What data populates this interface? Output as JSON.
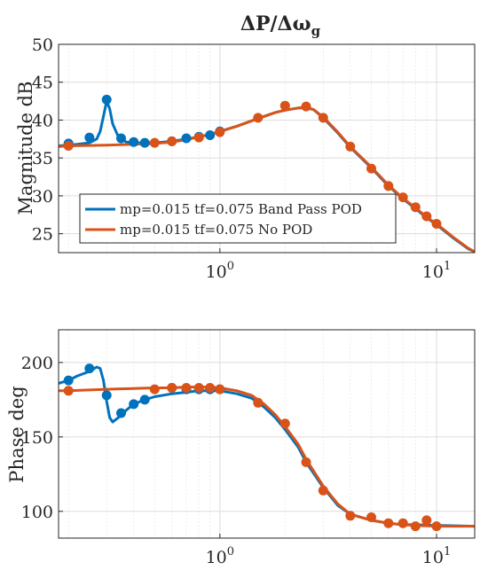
{
  "chart_data": [
    {
      "type": "line",
      "panel": "magnitude",
      "title": "ΔP/Δω",
      "title_subscript": "g",
      "ylabel": "Magnitude dB",
      "xscale": "log",
      "xlim": [
        0.18,
        15
      ],
      "ylim": [
        22.5,
        50
      ],
      "yticks": [
        25,
        30,
        35,
        40,
        45,
        50
      ],
      "xtick_labels": [
        {
          "x": 1,
          "base": "10",
          "exp": "0"
        },
        {
          "x": 10,
          "base": "10",
          "exp": "1"
        }
      ],
      "grid": true,
      "legend": {
        "placement": "lower-left",
        "entries": [
          {
            "label": "mp=0.015 tf=0.075 Band Pass POD",
            "color": "#0072BD"
          },
          {
            "label": "mp=0.015 tf=0.075 No POD",
            "color": "#D95319"
          }
        ]
      },
      "series": [
        {
          "name": "mp=0.015 tf=0.075 Band Pass POD",
          "color": "#0072BD",
          "line": [
            [
              0.18,
              36.6
            ],
            [
              0.2,
              36.7
            ],
            [
              0.22,
              36.8
            ],
            [
              0.25,
              37.0
            ],
            [
              0.27,
              37.5
            ],
            [
              0.28,
              38.5
            ],
            [
              0.29,
              40.5
            ],
            [
              0.3,
              42.5
            ],
            [
              0.31,
              41.5
            ],
            [
              0.32,
              39.5
            ],
            [
              0.34,
              37.8
            ],
            [
              0.37,
              37.1
            ],
            [
              0.4,
              37.0
            ],
            [
              0.5,
              37.0
            ],
            [
              0.6,
              37.2
            ],
            [
              0.7,
              37.5
            ],
            [
              0.8,
              37.8
            ],
            [
              0.9,
              38.1
            ],
            [
              1.0,
              38.5
            ],
            [
              1.2,
              39.2
            ],
            [
              1.5,
              40.2
            ],
            [
              1.8,
              41.0
            ],
            [
              2.0,
              41.3
            ],
            [
              2.3,
              41.6
            ],
            [
              2.5,
              41.6
            ],
            [
              2.7,
              41.4
            ],
            [
              3.0,
              40.3
            ],
            [
              3.5,
              38.3
            ],
            [
              4.0,
              36.4
            ],
            [
              5.0,
              33.7
            ],
            [
              6.0,
              31.3
            ],
            [
              7.0,
              29.6
            ],
            [
              8.0,
              28.3
            ],
            [
              9.0,
              27.1
            ],
            [
              10.0,
              26.2
            ],
            [
              12.0,
              24.4
            ],
            [
              14.0,
              23.0
            ],
            [
              15.0,
              22.6
            ]
          ],
          "points": [
            [
              0.2,
              36.9
            ],
            [
              0.25,
              37.7
            ],
            [
              0.3,
              42.7
            ],
            [
              0.35,
              37.6
            ],
            [
              0.4,
              37.1
            ],
            [
              0.45,
              37.0
            ],
            [
              0.6,
              37.2
            ],
            [
              0.7,
              37.6
            ],
            [
              0.8,
              37.8
            ],
            [
              0.9,
              38.0
            ],
            [
              1.0,
              38.5
            ]
          ]
        },
        {
          "name": "mp=0.015 tf=0.075 No POD",
          "color": "#D95319",
          "line": [
            [
              0.18,
              36.5
            ],
            [
              0.2,
              36.6
            ],
            [
              0.3,
              36.7
            ],
            [
              0.4,
              36.8
            ],
            [
              0.5,
              36.9
            ],
            [
              0.6,
              37.1
            ],
            [
              0.7,
              37.4
            ],
            [
              0.8,
              37.8
            ],
            [
              0.9,
              38.1
            ],
            [
              1.0,
              38.5
            ],
            [
              1.2,
              39.2
            ],
            [
              1.5,
              40.2
            ],
            [
              1.8,
              41.0
            ],
            [
              2.0,
              41.3
            ],
            [
              2.3,
              41.6
            ],
            [
              2.5,
              41.7
            ],
            [
              2.7,
              41.4
            ],
            [
              3.0,
              40.4
            ],
            [
              3.5,
              38.4
            ],
            [
              4.0,
              36.5
            ],
            [
              5.0,
              33.8
            ],
            [
              6.0,
              31.4
            ],
            [
              7.0,
              29.7
            ],
            [
              8.0,
              28.4
            ],
            [
              9.0,
              27.2
            ],
            [
              10.0,
              26.3
            ],
            [
              12.0,
              24.5
            ],
            [
              14.0,
              23.1
            ],
            [
              15.0,
              22.6
            ]
          ],
          "points": [
            [
              0.2,
              36.6
            ],
            [
              0.5,
              37.0
            ],
            [
              0.6,
              37.2
            ],
            [
              0.8,
              37.7
            ],
            [
              1.0,
              38.4
            ],
            [
              1.5,
              40.3
            ],
            [
              2.0,
              41.9
            ],
            [
              2.5,
              41.8
            ],
            [
              3.0,
              40.3
            ],
            [
              4.0,
              36.5
            ],
            [
              5.0,
              33.6
            ],
            [
              6.0,
              31.3
            ],
            [
              7.0,
              29.8
            ],
            [
              8.0,
              28.5
            ],
            [
              9.0,
              27.3
            ],
            [
              10.0,
              26.3
            ]
          ]
        }
      ]
    },
    {
      "type": "line",
      "panel": "phase",
      "ylabel": "Phase deg",
      "xscale": "log",
      "xlim": [
        0.18,
        15
      ],
      "ylim": [
        82,
        222
      ],
      "yticks": [
        100,
        150,
        200
      ],
      "xtick_labels": [
        {
          "x": 1,
          "base": "10",
          "exp": "0"
        },
        {
          "x": 10,
          "base": "10",
          "exp": "1"
        }
      ],
      "grid": true,
      "series": [
        {
          "name": "mp=0.015 tf=0.075 Band Pass POD",
          "color": "#0072BD",
          "line": [
            [
              0.18,
              186
            ],
            [
              0.2,
              188
            ],
            [
              0.22,
              191
            ],
            [
              0.25,
              194
            ],
            [
              0.27,
              197
            ],
            [
              0.28,
              196
            ],
            [
              0.29,
              188
            ],
            [
              0.3,
              174
            ],
            [
              0.31,
              163
            ],
            [
              0.32,
              160
            ],
            [
              0.34,
              163
            ],
            [
              0.37,
              168
            ],
            [
              0.4,
              172
            ],
            [
              0.45,
              175
            ],
            [
              0.5,
              177
            ],
            [
              0.6,
              179
            ],
            [
              0.7,
              180
            ],
            [
              0.8,
              181
            ],
            [
              0.9,
              181
            ],
            [
              1.0,
              181
            ],
            [
              1.2,
              179
            ],
            [
              1.4,
              176
            ],
            [
              1.6,
              170
            ],
            [
              1.8,
              163
            ],
            [
              2.0,
              155
            ],
            [
              2.3,
              143
            ],
            [
              2.5,
              133
            ],
            [
              3.0,
              116
            ],
            [
              3.5,
              104
            ],
            [
              4.0,
              98
            ],
            [
              5.0,
              94
            ],
            [
              6.0,
              92
            ],
            [
              7.0,
              91
            ],
            [
              8.0,
              91
            ],
            [
              10.0,
              90.5
            ],
            [
              15.0,
              90
            ]
          ],
          "points": [
            [
              0.2,
              188
            ],
            [
              0.25,
              196
            ],
            [
              0.3,
              178
            ],
            [
              0.35,
              166
            ],
            [
              0.4,
              172
            ],
            [
              0.45,
              175
            ],
            [
              0.6,
              183
            ],
            [
              0.7,
              182
            ],
            [
              0.8,
              182
            ],
            [
              0.9,
              182
            ],
            [
              1.0,
              182
            ]
          ]
        },
        {
          "name": "mp=0.015 tf=0.075 No POD",
          "color": "#D95319",
          "line": [
            [
              0.18,
              181
            ],
            [
              0.2,
              181
            ],
            [
              0.3,
              182
            ],
            [
              0.4,
              182.5
            ],
            [
              0.5,
              183
            ],
            [
              0.6,
              183
            ],
            [
              0.7,
              183.5
            ],
            [
              0.8,
              183.5
            ],
            [
              0.9,
              183.5
            ],
            [
              1.0,
              183
            ],
            [
              1.2,
              181
            ],
            [
              1.4,
              178
            ],
            [
              1.6,
              172
            ],
            [
              1.8,
              165
            ],
            [
              2.0,
              157
            ],
            [
              2.3,
              145
            ],
            [
              2.5,
              135
            ],
            [
              3.0,
              117
            ],
            [
              3.5,
              105
            ],
            [
              4.0,
              98
            ],
            [
              5.0,
              94
            ],
            [
              6.0,
              92
            ],
            [
              7.0,
              91
            ],
            [
              8.0,
              90.5
            ],
            [
              10.0,
              90
            ],
            [
              15.0,
              90
            ]
          ],
          "points": [
            [
              0.2,
              181
            ],
            [
              0.5,
              182
            ],
            [
              0.6,
              183
            ],
            [
              0.7,
              183
            ],
            [
              0.8,
              183
            ],
            [
              0.9,
              183
            ],
            [
              1.0,
              182
            ],
            [
              1.5,
              173
            ],
            [
              2.0,
              159
            ],
            [
              2.5,
              133
            ],
            [
              3.0,
              114
            ],
            [
              4.0,
              97
            ],
            [
              5.0,
              96
            ],
            [
              6.0,
              92
            ],
            [
              7.0,
              92
            ],
            [
              8.0,
              90
            ],
            [
              9.0,
              94
            ],
            [
              10.0,
              90
            ]
          ]
        }
      ]
    }
  ]
}
